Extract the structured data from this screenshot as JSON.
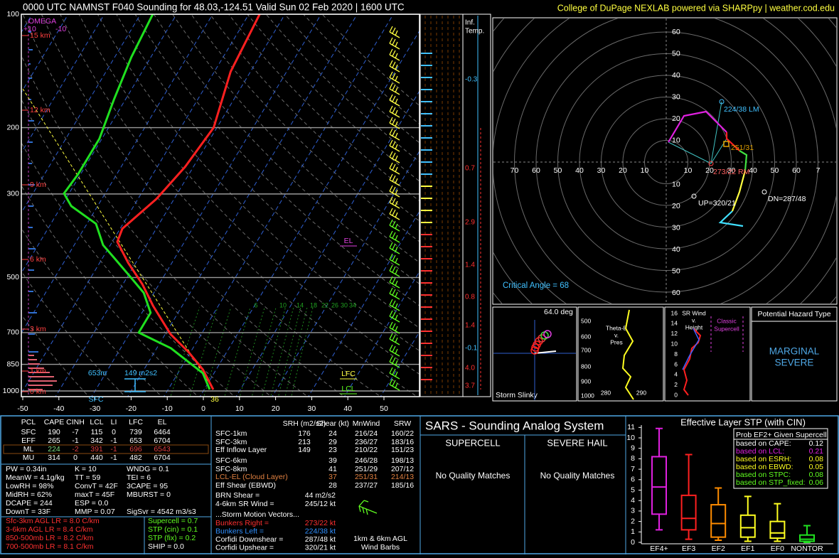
{
  "header": {
    "title": "0000 UTC NAMNST F040 Sounding for 48.03,-124.51 Valid  Sun 02 Feb 2020 | 1600 UTC",
    "credit": "College of DuPage NEXLAB powered via SHARPpy | weather.cod.edu"
  },
  "skewt": {
    "pressure_ticks": [
      100,
      200,
      300,
      500,
      700,
      850,
      1000
    ],
    "temperature_ticks": [
      -50,
      -40,
      -30,
      -20,
      -10,
      0,
      10,
      20,
      30,
      40,
      50
    ],
    "height_labels": [
      "15 km",
      "12 km",
      "9 km",
      "6 km",
      "3 km",
      "1 km",
      "0 km"
    ],
    "omega": [
      "OMEGA",
      "+10",
      "-10"
    ],
    "mixing_ratio_labels": [
      "6",
      "10",
      "14",
      "18",
      "22",
      "26",
      "30",
      "34"
    ],
    "temperature": {
      "pressure": [
        991,
        877,
        788,
        707,
        594,
        521,
        457,
        402,
        371,
        309,
        254,
        200,
        142,
        100
      ],
      "values": [
        2.5,
        -3.7,
        -10.6,
        -18.5,
        -28.1,
        -34.6,
        -42.1,
        -48.6,
        -49.4,
        -44.9,
        -42.3,
        -40.9,
        -45.5,
        -47.0
      ]
    },
    "dewpoint": {
      "pressure": [
        991,
        897,
        770,
        700,
        620,
        549,
        503,
        442,
        410,
        360,
        323,
        299,
        266,
        238,
        214,
        168,
        130,
        100
      ],
      "values": [
        1.5,
        -3.1,
        -16.1,
        -27.6,
        -27.6,
        -32.8,
        -38.5,
        -47.0,
        -52.0,
        -57.5,
        -67.3,
        -71.4,
        -70.7,
        -70.7,
        -70.7,
        -73.2,
        -75.4,
        -76.6
      ]
    },
    "markers": {
      "sfc": "SFC",
      "sfc_temp": "36",
      "eff_depth": "653m",
      "eff_srh": "149 m2s2",
      "el": "EL",
      "lfc": "LFC",
      "lcl": "LCL"
    }
  },
  "inferred_temp": {
    "title": [
      "Inf.",
      "Temp."
    ],
    "values": [
      "-0.3",
      "0.7",
      "2.9",
      "1.4",
      "0.8",
      "1.4",
      "-0.1",
      "4.0",
      "3.7"
    ]
  },
  "hodograph": {
    "ring_labels_up": [
      "60",
      "50",
      "40",
      "30",
      "20",
      "10"
    ],
    "ring_labels_down": [
      "10",
      "20",
      "30",
      "40",
      "50",
      "60"
    ],
    "ring_labels_left": [
      "70",
      "60",
      "50",
      "40",
      "30",
      "20",
      "10"
    ],
    "ring_labels_right": [
      "10",
      "20",
      "30",
      "40",
      "50",
      "60",
      "7"
    ],
    "annotations": {
      "lm": "224/38 LM",
      "mean": "251/31",
      "rm": "273/22 RM",
      "up": "UP=320/21",
      "dn": "DN=287/48",
      "critical": "Critical Angle = 68"
    }
  },
  "slinky": {
    "angle": "64.0 deg",
    "title": "Storm Slinky"
  },
  "theta_e": {
    "title": [
      "Theta-E",
      "v.",
      "Pres"
    ],
    "y_labels": [
      "500",
      "600",
      "700",
      "800",
      "900",
      "1000"
    ],
    "x_labels": [
      "280",
      "290"
    ]
  },
  "sr_wind": {
    "title": [
      "SR Wind",
      "v.",
      "Height"
    ],
    "note": [
      "Classic",
      "Supercell"
    ],
    "y_labels": [
      "16",
      "14",
      "12",
      "10",
      "8",
      "6",
      "4",
      "2",
      "0"
    ]
  },
  "hazard": {
    "title": "Potential Hazard Type",
    "value": [
      "MARGINAL",
      "SEVERE"
    ]
  },
  "thermo_table": {
    "header": [
      "PCL",
      "CAPE",
      "CINH",
      "LCL",
      "LI",
      "LFC",
      "EL"
    ],
    "rows": [
      [
        "SFC",
        "190",
        "-7",
        "115",
        "0",
        "739",
        "6464"
      ],
      [
        "EFF",
        "265",
        "-1",
        "342",
        "-1",
        "653",
        "6704"
      ],
      [
        "ML",
        "224",
        "-2",
        "391",
        "-1",
        "696",
        "6543"
      ],
      [
        "MU",
        "314",
        "0",
        "440",
        "-1",
        "482",
        "6704"
      ]
    ]
  },
  "indices": [
    [
      "PW = 0.34in",
      "K = 10",
      "WNDG = 0.1"
    ],
    [
      "MeanW = 4.1g/kg",
      "TT = 59",
      "TEI = 6"
    ],
    [
      "LowRH = 98%",
      "ConvT = 42F",
      "3CAPE = 95"
    ],
    [
      "MidRH = 62%",
      "maxT = 45F",
      "MBURST = 0"
    ],
    [
      "DCAPE = 244",
      "ESP = 0.0"
    ],
    [
      "DownT = 33F",
      "MMP = 0.07",
      "SigSvr = 4542 m3/s3"
    ]
  ],
  "lapse_rates": [
    "Sfc-3km AGL LR = 8.0 C/km",
    "3-6km AGL LR = 8.4 C/km",
    "850-500mb LR = 8.2 C/km",
    "700-500mb LR = 8.1 C/km"
  ],
  "composites": [
    "Supercell = 0.7",
    "STP (cin) = 0.1",
    "STP (fix) = 0.2",
    "SHIP = 0.0"
  ],
  "kinematics": {
    "header": [
      "SRH (m2/s2)",
      "Shear (kt)",
      "MnWind",
      "SRW"
    ],
    "rows": [
      [
        "SFC-1km",
        "176",
        "24",
        "216/24",
        "160/22"
      ],
      [
        "SFC-3km",
        "213",
        "29",
        "236/27",
        "183/16"
      ],
      [
        "Eff Inflow Layer",
        "149",
        "23",
        "210/22",
        "151/23"
      ],
      [
        "SFC-6km",
        "39",
        "246/28",
        "198/13"
      ],
      [
        "SFC-8km",
        "41",
        "251/29",
        "207/12"
      ],
      [
        "LCL-EL (Cloud Layer)",
        "37",
        "251/31",
        "214/13"
      ],
      [
        "Eff Shear (EBWD)",
        "28",
        "237/27",
        "185/16"
      ]
    ],
    "other": [
      [
        "BRN Shear =",
        "44 m2/s2"
      ],
      [
        "4-6km SR Wind =",
        "245/12 kt"
      ]
    ],
    "storm_motion_title": "...Storm Motion Vectors...",
    "storm_motion": [
      [
        "Bunkers Right =",
        "273/22 kt"
      ],
      [
        "Bunkers Left =",
        "224/38 kt"
      ],
      [
        "Corfidi Downshear =",
        "287/48 kt"
      ],
      [
        "Corfidi Upshear =",
        "320/21 kt"
      ]
    ],
    "barbs_label": [
      "1km & 6km AGL",
      "Wind Barbs"
    ]
  },
  "sars": {
    "title": "SARS - Sounding Analog System",
    "columns": [
      {
        "title": "SUPERCELL",
        "result": "No Quality Matches"
      },
      {
        "title": "SEVERE HAIL",
        "result": "No Quality Matches"
      }
    ]
  },
  "stp": {
    "title": "Effective Layer STP (with CIN)",
    "yticks": [
      0,
      1,
      2,
      3,
      4,
      5,
      6,
      7,
      8,
      9,
      10,
      11
    ],
    "categories": [
      "EF4+",
      "EF3",
      "EF2",
      "EF1",
      "EF0",
      "NONTOR"
    ],
    "boxes": [
      {
        "min": 1.2,
        "q1": 2.7,
        "median": 5.3,
        "q3": 8.2,
        "max": 10.9
      },
      {
        "min": 0.3,
        "q1": 1.2,
        "median": 2.3,
        "q3": 4.5,
        "max": 8.4
      },
      {
        "min": 0.2,
        "q1": 0.5,
        "median": 1.8,
        "q3": 3.6,
        "max": 5.2
      },
      {
        "min": 0.1,
        "q1": 0.5,
        "median": 1.4,
        "q3": 2.6,
        "max": 4.4
      },
      {
        "min": 0.1,
        "q1": 0.4,
        "median": 0.9,
        "q3": 2.0,
        "max": 3.7
      },
      {
        "min": 0,
        "q1": 0.1,
        "median": 0.3,
        "q3": 0.7,
        "max": 1.6
      }
    ],
    "prob": {
      "title": "Prob EF2+ Given Supercell",
      "rows": [
        [
          "based on CAPE:",
          "0.12"
        ],
        [
          "based on LCL:",
          "0.21"
        ],
        [
          "based on ESRH:",
          "0.08"
        ],
        [
          "based on EBWD:",
          "0.05"
        ],
        [
          "based on STPC:",
          "0.08"
        ],
        [
          "based on STP_fixed:",
          "0.06"
        ]
      ]
    }
  }
}
